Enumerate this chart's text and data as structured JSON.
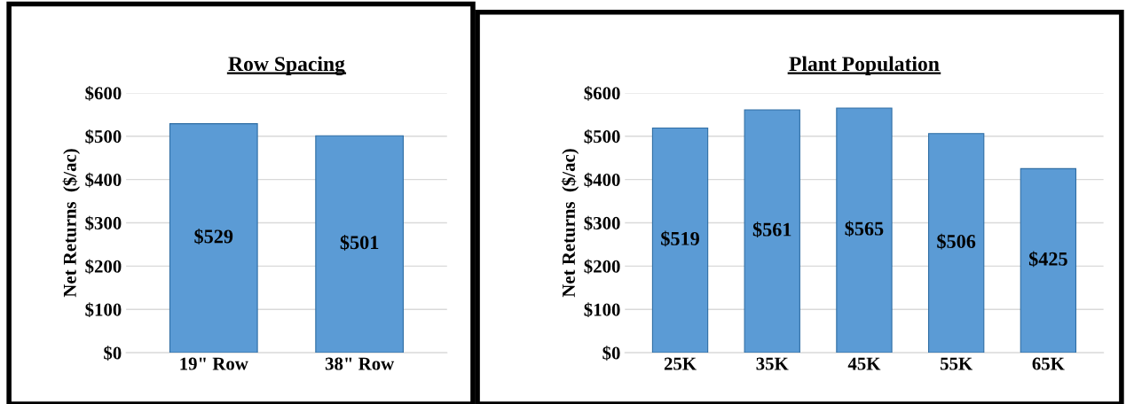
{
  "chart_data": [
    {
      "type": "bar",
      "title": "Row Spacing",
      "ylabel": "Net Returns  ($/ac)",
      "categories": [
        "19\" Row",
        "38\" Row"
      ],
      "values": [
        529,
        501
      ],
      "color": "#5b9bd5",
      "ylim": [
        0,
        600
      ],
      "yticks": [
        {
          "value": 0,
          "label": "$0"
        },
        {
          "value": 100,
          "label": "$100"
        },
        {
          "value": 200,
          "label": "$200"
        },
        {
          "value": 300,
          "label": "$300"
        },
        {
          "value": 400,
          "label": "$400"
        },
        {
          "value": 500,
          "label": "$500"
        },
        {
          "value": 600,
          "label": "$600"
        }
      ],
      "grid": "y",
      "data_labels": true,
      "value_labels": [
        "$529",
        "$501"
      ]
    },
    {
      "type": "bar",
      "title": "Plant Population",
      "ylabel": "Net Returns  ($/ac)",
      "categories": [
        "25K",
        "35K",
        "45K",
        "55K",
        "65K"
      ],
      "values": [
        519,
        561,
        565,
        506,
        425
      ],
      "color": "#5b9bd5",
      "ylim": [
        0,
        600
      ],
      "yticks": [
        {
          "value": 0,
          "label": "$0"
        },
        {
          "value": 100,
          "label": "$100"
        },
        {
          "value": 200,
          "label": "$200"
        },
        {
          "value": 300,
          "label": "$300"
        },
        {
          "value": 400,
          "label": "$400"
        },
        {
          "value": 500,
          "label": "$500"
        },
        {
          "value": 600,
          "label": "$600"
        }
      ],
      "grid": "y",
      "data_labels": true,
      "value_labels": [
        "$519",
        "$561",
        "$565",
        "$506",
        "$425"
      ]
    }
  ]
}
